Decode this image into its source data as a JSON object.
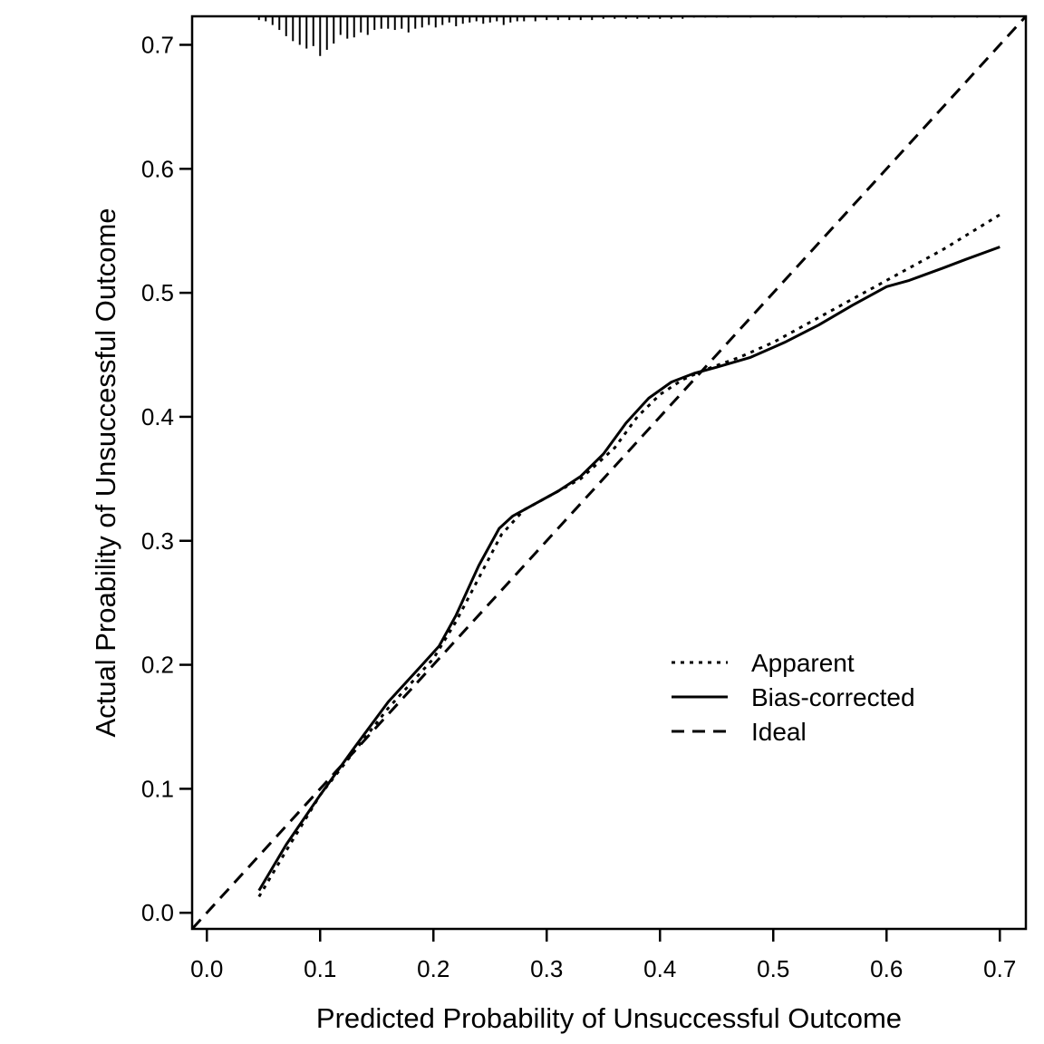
{
  "chart_data": {
    "type": "line",
    "title": "",
    "xlabel": "Predicted Probability of Unsuccessful Outcome",
    "ylabel": "Actual Proability of Unsuccessful Outcome",
    "xlim": [
      -0.013,
      0.723
    ],
    "ylim": [
      -0.013,
      0.723
    ],
    "xticks": [
      "0.0",
      "0.1",
      "0.2",
      "0.3",
      "0.4",
      "0.5",
      "0.6",
      "0.7"
    ],
    "yticks": [
      "0.0",
      "0.1",
      "0.2",
      "0.3",
      "0.4",
      "0.5",
      "0.6",
      "0.7"
    ],
    "grid": false,
    "legend_position": "bottom-right",
    "series": [
      {
        "name": "Apparent",
        "style": "dotted",
        "x": [
          0.046,
          0.07,
          0.1,
          0.13,
          0.16,
          0.2,
          0.22,
          0.24,
          0.26,
          0.28,
          0.3,
          0.33,
          0.36,
          0.38,
          0.4,
          0.42,
          0.44,
          0.47,
          0.5,
          0.55,
          0.6,
          0.65,
          0.7
        ],
        "y": [
          0.013,
          0.05,
          0.095,
          0.13,
          0.165,
          0.205,
          0.235,
          0.27,
          0.305,
          0.325,
          0.335,
          0.35,
          0.375,
          0.4,
          0.418,
          0.43,
          0.438,
          0.448,
          0.46,
          0.485,
          0.51,
          0.535,
          0.563
        ]
      },
      {
        "name": "Bias-corrected",
        "style": "solid",
        "x": [
          0.046,
          0.07,
          0.1,
          0.13,
          0.16,
          0.19,
          0.205,
          0.22,
          0.24,
          0.258,
          0.27,
          0.29,
          0.31,
          0.33,
          0.35,
          0.37,
          0.39,
          0.41,
          0.43,
          0.45,
          0.48,
          0.51,
          0.54,
          0.57,
          0.6,
          0.62,
          0.65,
          0.67,
          0.7
        ],
        "y": [
          0.018,
          0.055,
          0.095,
          0.133,
          0.17,
          0.2,
          0.215,
          0.24,
          0.28,
          0.31,
          0.32,
          0.33,
          0.34,
          0.352,
          0.37,
          0.395,
          0.415,
          0.428,
          0.435,
          0.44,
          0.448,
          0.46,
          0.474,
          0.49,
          0.505,
          0.51,
          0.52,
          0.527,
          0.537
        ]
      },
      {
        "name": "Ideal",
        "style": "dashed",
        "x": [
          -0.013,
          0.723
        ],
        "y": [
          -0.013,
          0.723
        ]
      }
    ],
    "rug": {
      "x": [
        0.046,
        0.052,
        0.058,
        0.064,
        0.07,
        0.076,
        0.082,
        0.088,
        0.094,
        0.1,
        0.106,
        0.112,
        0.118,
        0.124,
        0.13,
        0.136,
        0.142,
        0.148,
        0.154,
        0.16,
        0.166,
        0.172,
        0.178,
        0.184,
        0.19,
        0.196,
        0.202,
        0.208,
        0.214,
        0.22,
        0.226,
        0.232,
        0.238,
        0.244,
        0.25,
        0.256,
        0.262,
        0.268,
        0.274,
        0.28,
        0.29,
        0.3,
        0.31,
        0.32,
        0.33,
        0.34,
        0.35,
        0.36,
        0.37,
        0.38,
        0.39,
        0.4,
        0.41,
        0.42,
        0.43,
        0.44,
        0.45,
        0.46,
        0.48,
        0.5,
        0.52,
        0.54,
        0.56,
        0.58,
        0.6,
        0.62,
        0.64,
        0.66,
        0.68,
        0.7
      ],
      "y": [
        0.72,
        0.719,
        0.716,
        0.712,
        0.707,
        0.703,
        0.7,
        0.697,
        0.699,
        0.691,
        0.696,
        0.701,
        0.708,
        0.705,
        0.706,
        0.71,
        0.708,
        0.712,
        0.713,
        0.713,
        0.712,
        0.713,
        0.71,
        0.713,
        0.714,
        0.716,
        0.714,
        0.716,
        0.718,
        0.715,
        0.717,
        0.718,
        0.719,
        0.717,
        0.718,
        0.719,
        0.716,
        0.718,
        0.719,
        0.719,
        0.719,
        0.72,
        0.72,
        0.72,
        0.72,
        0.72,
        0.721,
        0.721,
        0.721,
        0.721,
        0.721,
        0.721,
        0.721,
        0.721,
        0.722,
        0.722,
        0.722,
        0.722,
        0.722,
        0.722,
        0.722,
        0.722,
        0.722,
        0.722,
        0.722,
        0.722,
        0.722,
        0.722,
        0.722,
        0.722
      ]
    }
  }
}
